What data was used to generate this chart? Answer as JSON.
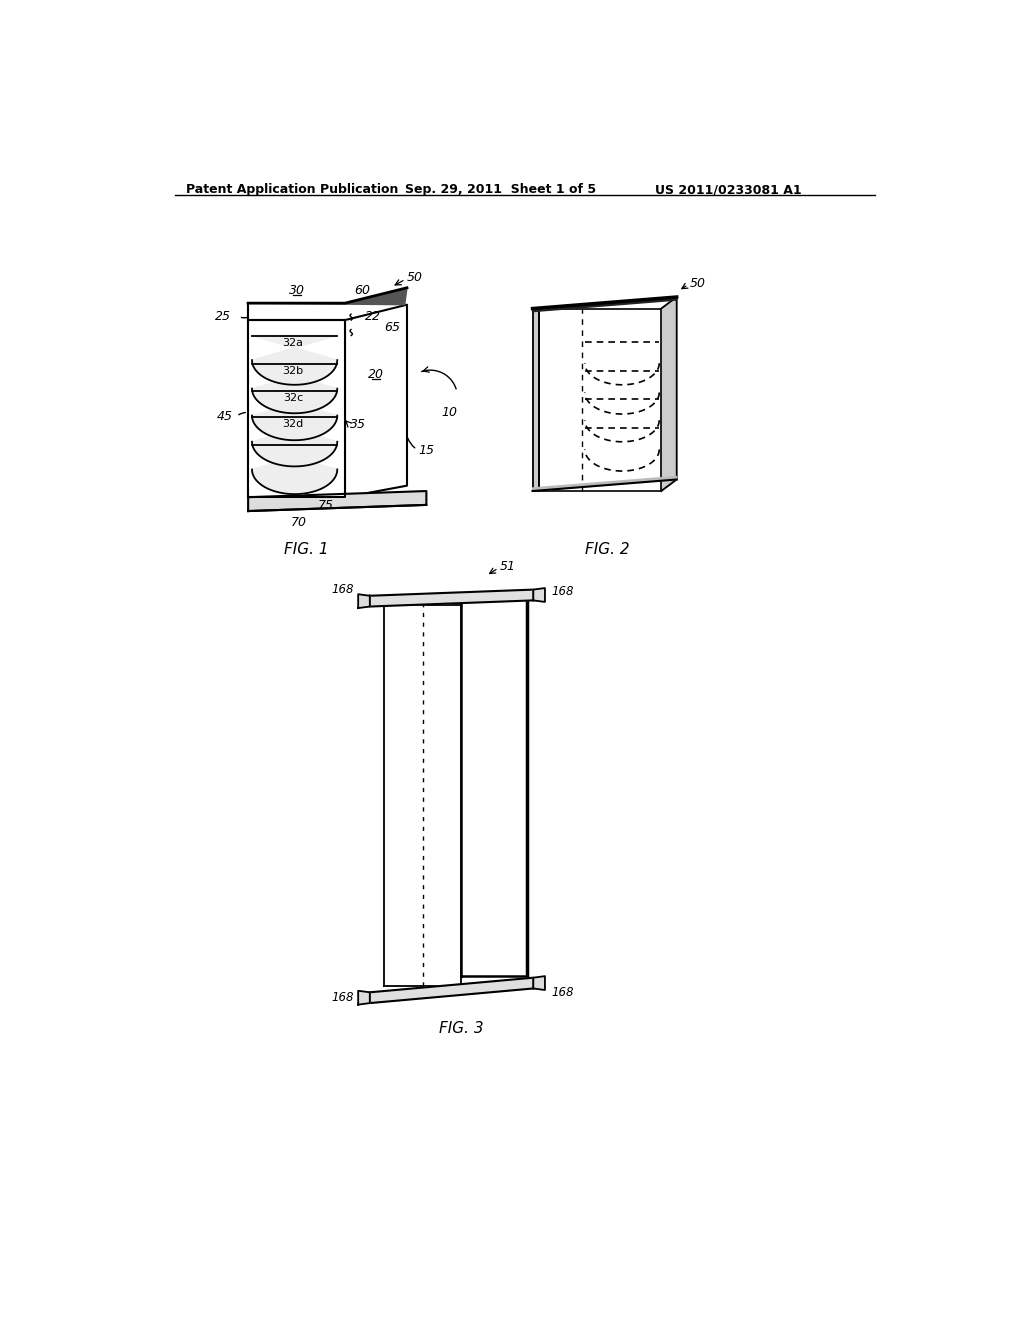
{
  "background_color": "#ffffff",
  "header_left": "Patent Application Publication",
  "header_mid": "Sep. 29, 2011  Sheet 1 of 5",
  "header_right": "US 2011/0233081 A1",
  "fig1_label": "FIG. 1",
  "fig2_label": "FIG. 2",
  "fig3_label": "FIG. 3",
  "line_color": "#000000"
}
